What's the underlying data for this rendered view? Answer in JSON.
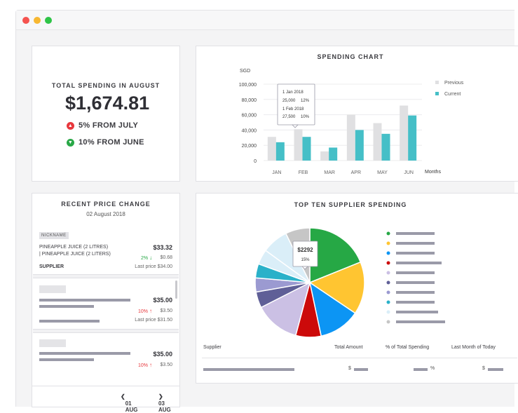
{
  "total_spending": {
    "label": "TOTAL SPENDING IN AUGUST",
    "amount": "$1,674.81",
    "changes": [
      {
        "text": "5% FROM JULY",
        "direction": "up",
        "color": "#e8383d"
      },
      {
        "text": "10% FROM JUNE",
        "direction": "down",
        "color": "#29a847"
      }
    ]
  },
  "spending_chart": {
    "title": "SPENDING CHART",
    "unit_label": "SGD",
    "x_axis_label": "Months",
    "legend": [
      {
        "name": "Previous",
        "color": "#e0e0e2"
      },
      {
        "name": "Current",
        "color": "#45bfc7"
      }
    ],
    "tooltip": {
      "line1_date": "1 Jan 2018",
      "line1_value": "25,000",
      "line1_pct": "12%",
      "line2_date": "1 Feb 2018",
      "line2_value": "27,500",
      "line2_pct": "10%"
    }
  },
  "chart_data": {
    "type": "bar",
    "title": "SPENDING CHART",
    "ylabel": "SGD",
    "xlabel": "Months",
    "categories": [
      "JAN",
      "FEB",
      "MAR",
      "APR",
      "MAY",
      "JUN"
    ],
    "yticks": [
      "0",
      "20,000",
      "40,000",
      "60,000",
      "80,000",
      "100,000"
    ],
    "ylim": [
      0,
      100000
    ],
    "series": [
      {
        "name": "Previous",
        "color": "#e0e0e2",
        "values": [
          31000,
          41000,
          12000,
          60000,
          49000,
          72000
        ]
      },
      {
        "name": "Current",
        "color": "#45bfc7",
        "values": [
          24000,
          31000,
          17000,
          40000,
          35000,
          59000
        ]
      }
    ],
    "legend_position": "right",
    "grid": true
  },
  "recent_price": {
    "title": "RECENT PRICE CHANGE",
    "date": "02 August 2018",
    "tag": "NICKNAME",
    "product_line1": "PINEAPPLE JUICE (2 LITRES)",
    "product_line2": "| PINEAPPLE JUICE (2 LITERS)",
    "item1_price": "$33.32",
    "item1_change_pct": "2%",
    "item1_change_amt": "$0.68",
    "supplier_label": "SUPPLIER",
    "item1_last": "Last price $34.00",
    "item2_price": "$35.00",
    "item2_change_pct": "10%",
    "item2_change_amt": "$3.50",
    "item2_last": "Last price $31.50",
    "item3_price": "$35.00",
    "item3_change_pct": "10%",
    "item3_change_amt": "$3.50",
    "pager_prev": "01 AUG",
    "pager_next": "03 AUG",
    "up_color": "#e8383d",
    "down_color": "#29a847"
  },
  "supplier_chart": {
    "title": "TOP TEN SUPPLIER SPENDING",
    "tooltip_value": "$2292",
    "tooltip_pct": "15%",
    "colors": [
      "#26a845",
      "#ffc531",
      "#0c95f4",
      "#cc0a0a",
      "#cbc0e4",
      "#5f5f97",
      "#9b9ad1",
      "#2ab1c9",
      "#daeef8",
      "#c6c6c6"
    ],
    "columns": [
      "Supplier",
      "Total Amount",
      "% of Total Spending",
      "Last Month of Today"
    ],
    "row_currency": "$",
    "row_pct": "%"
  }
}
